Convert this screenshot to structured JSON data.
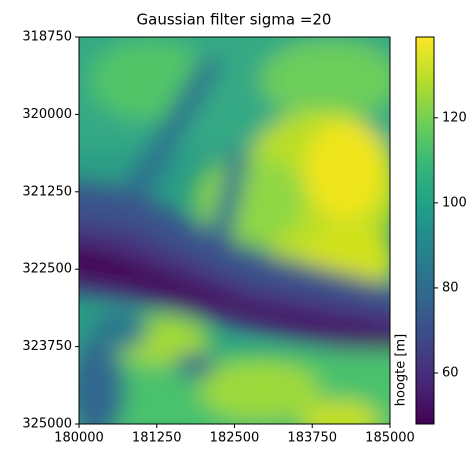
{
  "chart_data": {
    "type": "image",
    "title": "Gaussian filter sigma =20",
    "xlim": [
      180000,
      185000
    ],
    "xticks": [
      180000,
      181250,
      182500,
      183750,
      185000
    ],
    "ylim": [
      325000,
      318750
    ],
    "yticks": [
      318750,
      320000,
      321250,
      322500,
      323750,
      325000
    ],
    "colormap": "viridis",
    "clim": [
      48,
      139
    ],
    "cticks": [
      60,
      80,
      100,
      120
    ],
    "colorbar_label": "hoogte [m]"
  }
}
